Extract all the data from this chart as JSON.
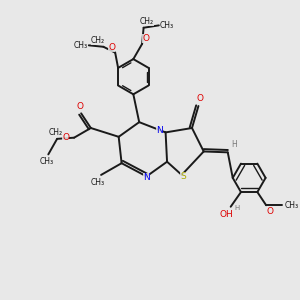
{
  "bg": "#e8e8e8",
  "bc": "#1a1a1a",
  "nc": "#0000ee",
  "sc": "#aaaa00",
  "oc": "#dd0000",
  "hc": "#777777",
  "fs": 6.5,
  "lw": 1.4,
  "xlim": [
    0,
    10
  ],
  "ylim": [
    0,
    10
  ]
}
